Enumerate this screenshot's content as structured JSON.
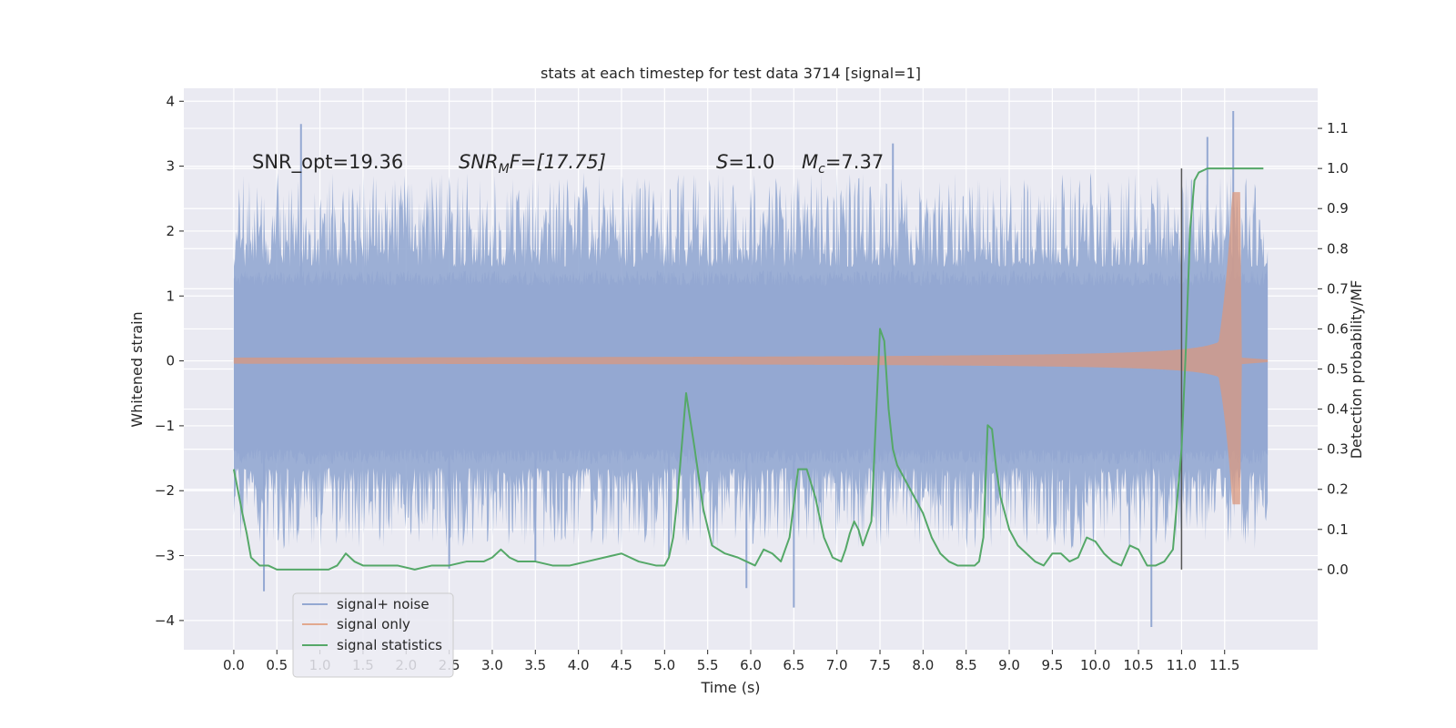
{
  "chart_data": {
    "type": "line",
    "title": "stats at each timestep for test data 3714 [signal=1]",
    "xlabel": "Time (s)",
    "ylabel": "Whitened strain",
    "ylabel_right": "Detection probability/MF",
    "xlim": [
      -0.58,
      12.58
    ],
    "ylim": [
      -4.45,
      4.2
    ],
    "ylim_right": [
      -0.2,
      1.2
    ],
    "x_ticks": [
      "0.0",
      "0.5",
      "1.0",
      "1.5",
      "2.0",
      "2.5",
      "3.0",
      "3.5",
      "4.0",
      "4.5",
      "5.0",
      "5.5",
      "6.0",
      "6.5",
      "7.0",
      "7.5",
      "8.0",
      "8.5",
      "9.0",
      "9.5",
      "10.0",
      "10.5",
      "11.0",
      "11.5"
    ],
    "y_ticks": [
      "4",
      "3",
      "2",
      "1",
      "0",
      "−1",
      "−2",
      "−3",
      "−4"
    ],
    "y_ticks_right": [
      "1.1",
      "1.0",
      "0.9",
      "0.8",
      "0.7",
      "0.6",
      "0.5",
      "0.4",
      "0.3",
      "0.2",
      "0.1",
      "0.0"
    ],
    "colors": {
      "noise": "#94a8d2",
      "signal": "#d9987f",
      "stats": "#55a868",
      "marker": "#555555",
      "axes_bg": "#eaeaf2",
      "grid": "#ffffff"
    },
    "series": [
      {
        "name": "signal+ noise",
        "x_range": [
          0.0,
          12.0
        ],
        "envelope_dense": [
          -1.35,
          1.15
        ],
        "envelope_peaks": [
          -2.6,
          2.6
        ],
        "spikes": [
          [
            0.78,
            3.65
          ],
          [
            0.35,
            -3.55
          ],
          [
            5.95,
            -3.5
          ],
          [
            6.5,
            -3.8
          ],
          [
            10.65,
            -4.1
          ],
          [
            11.6,
            3.85
          ],
          [
            7.65,
            3.35
          ],
          [
            5.05,
            -3.0
          ],
          [
            2.5,
            -3.2
          ],
          [
            3.5,
            -3.1
          ],
          [
            11.3,
            3.45
          ]
        ]
      },
      {
        "name": "signal only",
        "x_range": [
          0.0,
          11.7
        ],
        "chirp_end": 11.68,
        "peak_amplitude": 2.6
      },
      {
        "name": "signal statistics",
        "axis": "right",
        "x": [
          0.0,
          0.1,
          0.15,
          0.2,
          0.3,
          0.4,
          0.5,
          0.6,
          0.8,
          1.0,
          1.1,
          1.2,
          1.3,
          1.4,
          1.5,
          1.7,
          1.9,
          2.1,
          2.3,
          2.5,
          2.7,
          2.9,
          3.0,
          3.1,
          3.2,
          3.3,
          3.5,
          3.7,
          3.9,
          4.1,
          4.3,
          4.5,
          4.7,
          4.9,
          5.0,
          5.05,
          5.1,
          5.15,
          5.25,
          5.35,
          5.45,
          5.55,
          5.7,
          5.85,
          5.95,
          6.05,
          6.15,
          6.25,
          6.35,
          6.45,
          6.55,
          6.65,
          6.75,
          6.85,
          6.95,
          7.05,
          7.1,
          7.15,
          7.2,
          7.25,
          7.3,
          7.4,
          7.5,
          7.55,
          7.6,
          7.65,
          7.7,
          7.8,
          7.9,
          8.0,
          8.1,
          8.2,
          8.3,
          8.4,
          8.5,
          8.6,
          8.65,
          8.7,
          8.75,
          8.8,
          8.85,
          8.9,
          9.0,
          9.1,
          9.2,
          9.3,
          9.4,
          9.5,
          9.6,
          9.7,
          9.8,
          9.9,
          10.0,
          10.1,
          10.2,
          10.3,
          10.4,
          10.5,
          10.6,
          10.7,
          10.8,
          10.9,
          11.0,
          11.05,
          11.1,
          11.15,
          11.2,
          11.3,
          11.5,
          11.7,
          11.95
        ],
        "y": [
          0.25,
          0.14,
          0.09,
          0.03,
          0.01,
          0.01,
          0.0,
          0.0,
          0.0,
          0.0,
          0.0,
          0.01,
          0.04,
          0.02,
          0.01,
          0.01,
          0.01,
          0.0,
          0.01,
          0.01,
          0.02,
          0.02,
          0.03,
          0.05,
          0.03,
          0.02,
          0.02,
          0.01,
          0.01,
          0.02,
          0.03,
          0.04,
          0.02,
          0.01,
          0.01,
          0.03,
          0.08,
          0.18,
          0.44,
          0.3,
          0.15,
          0.06,
          0.04,
          0.03,
          0.02,
          0.01,
          0.05,
          0.04,
          0.02,
          0.08,
          0.25,
          0.25,
          0.18,
          0.08,
          0.03,
          0.02,
          0.05,
          0.09,
          0.12,
          0.1,
          0.06,
          0.12,
          0.6,
          0.57,
          0.4,
          0.3,
          0.26,
          0.22,
          0.18,
          0.14,
          0.08,
          0.04,
          0.02,
          0.01,
          0.01,
          0.01,
          0.02,
          0.08,
          0.36,
          0.35,
          0.25,
          0.18,
          0.1,
          0.06,
          0.04,
          0.02,
          0.01,
          0.04,
          0.04,
          0.02,
          0.03,
          0.08,
          0.07,
          0.04,
          0.02,
          0.01,
          0.06,
          0.05,
          0.01,
          0.01,
          0.02,
          0.05,
          0.3,
          0.55,
          0.85,
          0.97,
          0.99,
          1.0,
          1.0,
          1.0,
          1.0
        ]
      }
    ],
    "annotations": {
      "snr_opt": "SNR_opt=19.36",
      "snr_mf_sym": "SNR",
      "snr_mf_sub": "M",
      "snr_mf_rest": "F=[17.75]",
      "s_sym": "S",
      "s_rest": "=1.0",
      "mc_sym": "M",
      "mc_sub": "c",
      "mc_rest": "=7.37"
    },
    "vertical_marker_x": 11.0,
    "legend": {
      "position": "lower-left",
      "items": [
        "signal+ noise",
        "signal only",
        "signal statistics"
      ]
    }
  }
}
